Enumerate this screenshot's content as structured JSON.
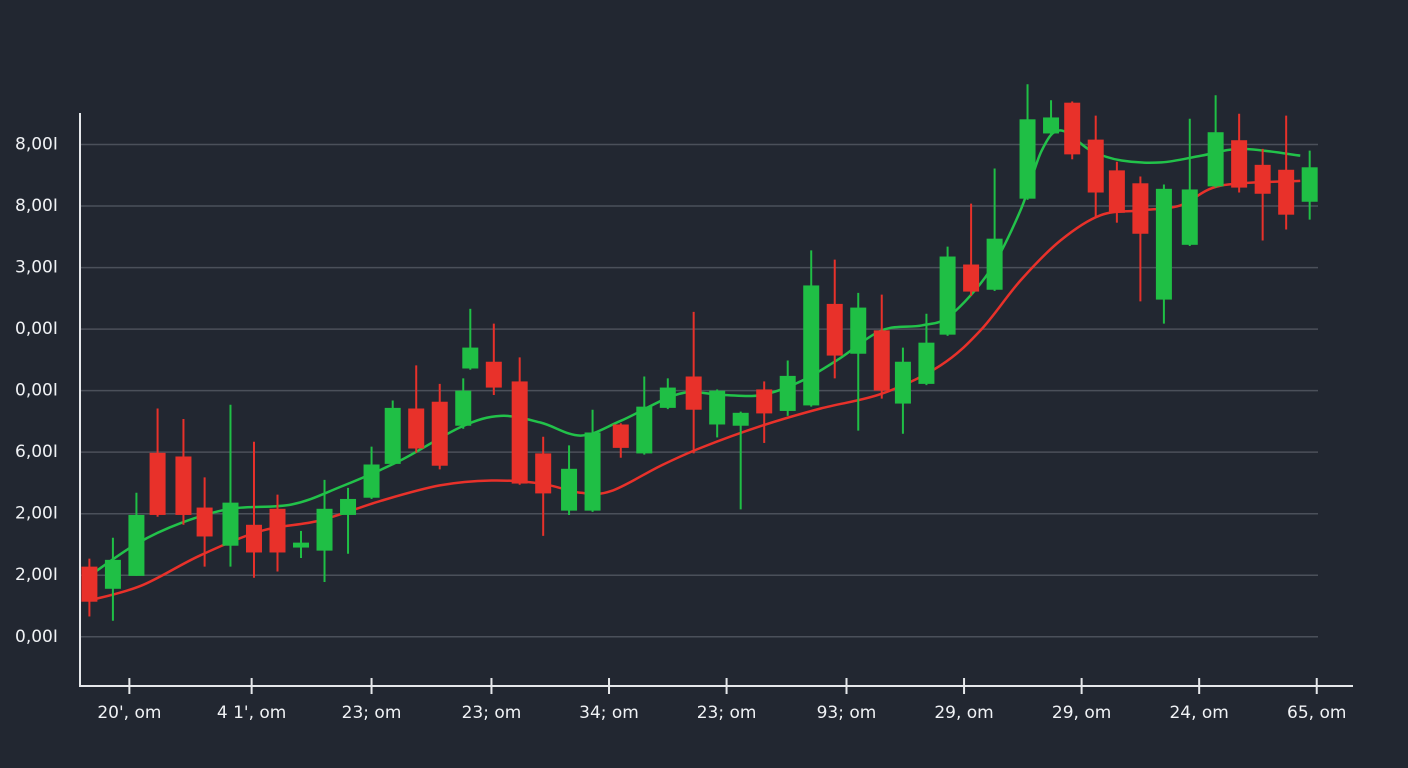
{
  "chart_data": {
    "type": "candlestick",
    "up_color": "#1fbf45",
    "down_color": "#e8312a",
    "grid": true,
    "xlim": [
      -0.4,
      53.7
    ],
    "ylim": [
      -0.8,
      9.0
    ],
    "xticks": [
      {
        "value": 1.7,
        "label": "20', om"
      },
      {
        "value": 6.9,
        "label": "4 1', om"
      },
      {
        "value": 12.0,
        "label": "23; om"
      },
      {
        "value": 17.1,
        "label": "23; om"
      },
      {
        "value": 22.1,
        "label": "34; om"
      },
      {
        "value": 27.1,
        "label": "23; om"
      },
      {
        "value": 32.2,
        "label": "93; om"
      },
      {
        "value": 37.2,
        "label": "29, om"
      },
      {
        "value": 42.2,
        "label": "29, om"
      },
      {
        "value": 47.2,
        "label": "24, om"
      },
      {
        "value": 52.2,
        "label": "65, om"
      }
    ],
    "yticks": [
      {
        "value": 8,
        "label": "8,00I"
      },
      {
        "value": 7,
        "label": "8,00I"
      },
      {
        "value": 6,
        "label": "3,00I"
      },
      {
        "value": 5,
        "label": "0,00I"
      },
      {
        "value": 4,
        "label": "0,00I"
      },
      {
        "value": 3,
        "label": "6,00I"
      },
      {
        "value": 2,
        "label": "2,00I"
      },
      {
        "value": 1,
        "label": "2,00I"
      },
      {
        "value": 0,
        "label": "0,00I"
      }
    ],
    "x": [
      0,
      1.0,
      2.0,
      2.9,
      4.0,
      4.9,
      6.0,
      7.0,
      8.0,
      9.0,
      10.0,
      11.0,
      12.0,
      12.9,
      13.9,
      14.9,
      15.9,
      16.2,
      17.2,
      18.3,
      19.3,
      20.4,
      21.4,
      22.6,
      23.6,
      24.6,
      25.7,
      26.7,
      27.7,
      28.7,
      29.7,
      30.7,
      31.7,
      32.7,
      33.7,
      34.6,
      35.6,
      36.5,
      37.5,
      38.5,
      39.9,
      40.9,
      41.8,
      42.8,
      43.7,
      44.7,
      45.7,
      46.8,
      47.9,
      48.9,
      49.9,
      50.9,
      51.9
    ],
    "open": [
      1.14,
      0.78,
      0.99,
      2.99,
      2.93,
      2.1,
      1.48,
      1.82,
      2.08,
      1.45,
      1.4,
      1.98,
      2.26,
      2.81,
      3.71,
      3.82,
      3.43,
      4.36,
      4.47,
      4.15,
      2.98,
      2.05,
      2.05,
      3.45,
      2.98,
      3.72,
      4.23,
      3.45,
      3.43,
      4.02,
      3.67,
      3.76,
      5.41,
      4.6,
      4.98,
      3.79,
      4.11,
      4.91,
      6.05,
      5.64,
      7.12,
      8.18,
      8.68,
      8.08,
      7.58,
      7.37,
      5.48,
      6.37,
      7.32,
      8.07,
      7.67,
      7.59,
      7.07
    ],
    "high": [
      1.27,
      1.61,
      2.34,
      3.71,
      3.54,
      2.59,
      3.77,
      3.17,
      2.31,
      1.72,
      2.55,
      2.42,
      3.09,
      3.84,
      4.41,
      4.11,
      4.2,
      5.33,
      5.09,
      4.54,
      3.25,
      3.11,
      3.69,
      3.47,
      4.23,
      4.2,
      5.28,
      4.02,
      3.66,
      4.15,
      4.49,
      6.28,
      6.13,
      5.59,
      5.56,
      4.7,
      5.25,
      6.34,
      7.04,
      7.61,
      8.98,
      8.72,
      8.7,
      8.47,
      7.72,
      7.48,
      7.35,
      8.42,
      8.8,
      8.5,
      7.93,
      8.47,
      7.9
    ],
    "low": [
      0.33,
      0.26,
      0.99,
      1.95,
      1.82,
      1.14,
      1.14,
      0.96,
      1.06,
      1.28,
      0.89,
      1.35,
      2.24,
      2.79,
      2.99,
      2.72,
      3.38,
      4.34,
      3.93,
      2.47,
      1.64,
      1.98,
      2.03,
      2.91,
      2.96,
      3.7,
      2.98,
      3.24,
      2.07,
      3.15,
      3.59,
      3.74,
      4.2,
      3.35,
      3.87,
      3.3,
      4.09,
      4.89,
      5.54,
      5.62,
      7.1,
      8.16,
      7.76,
      6.81,
      6.73,
      5.45,
      5.09,
      6.35,
      7.3,
      7.22,
      6.44,
      6.62,
      6.78
    ],
    "close": [
      0.57,
      1.25,
      1.98,
      1.98,
      1.98,
      1.63,
      2.18,
      1.37,
      1.37,
      1.53,
      2.08,
      2.24,
      2.8,
      3.72,
      3.06,
      2.78,
      4.0,
      4.7,
      4.05,
      2.49,
      2.33,
      2.73,
      3.32,
      3.07,
      3.74,
      4.05,
      3.69,
      4.0,
      3.64,
      3.63,
      4.24,
      5.71,
      4.57,
      5.35,
      4.0,
      4.47,
      4.78,
      6.18,
      5.61,
      6.47,
      8.41,
      8.44,
      7.84,
      7.22,
      6.89,
      6.55,
      7.28,
      7.27,
      8.2,
      7.3,
      7.2,
      6.86,
      7.63
    ],
    "overlays": [
      {
        "color": "#22c24a",
        "x": [
          0,
          2.0,
          3.9,
          6.0,
          8.6,
          10.7,
          13.2,
          15.8,
          17.5,
          19.2,
          20.9,
          22.6,
          25.1,
          26.9,
          28.6,
          30.3,
          31.9,
          33.7,
          35.4,
          36.6,
          38.3,
          39.6,
          40.5,
          41.3,
          42.6,
          43.9,
          45.6,
          47.3,
          49.0,
          51.5
        ],
        "values": [
          0.99,
          1.51,
          1.85,
          2.08,
          2.15,
          2.44,
          2.86,
          3.41,
          3.59,
          3.48,
          3.27,
          3.51,
          3.95,
          3.93,
          3.93,
          4.16,
          4.52,
          4.98,
          5.06,
          5.22,
          5.95,
          6.93,
          7.9,
          8.23,
          7.9,
          7.74,
          7.71,
          7.82,
          7.93,
          7.82
        ]
      },
      {
        "color": "#e8312a",
        "x": [
          0,
          2.2,
          4.7,
          7.3,
          9.8,
          12.4,
          14.9,
          17.1,
          19.2,
          20.9,
          22.2,
          24.3,
          26.0,
          28.6,
          31.1,
          33.7,
          36.2,
          37.9,
          39.6,
          41.3,
          43.0,
          44.7,
          46.4,
          48.1,
          51.5
        ],
        "values": [
          0.59,
          0.83,
          1.32,
          1.72,
          1.89,
          2.21,
          2.46,
          2.54,
          2.49,
          2.34,
          2.37,
          2.78,
          3.07,
          3.43,
          3.71,
          3.95,
          4.41,
          4.98,
          5.79,
          6.44,
          6.85,
          6.93,
          7.01,
          7.33,
          7.41
        ]
      }
    ]
  }
}
